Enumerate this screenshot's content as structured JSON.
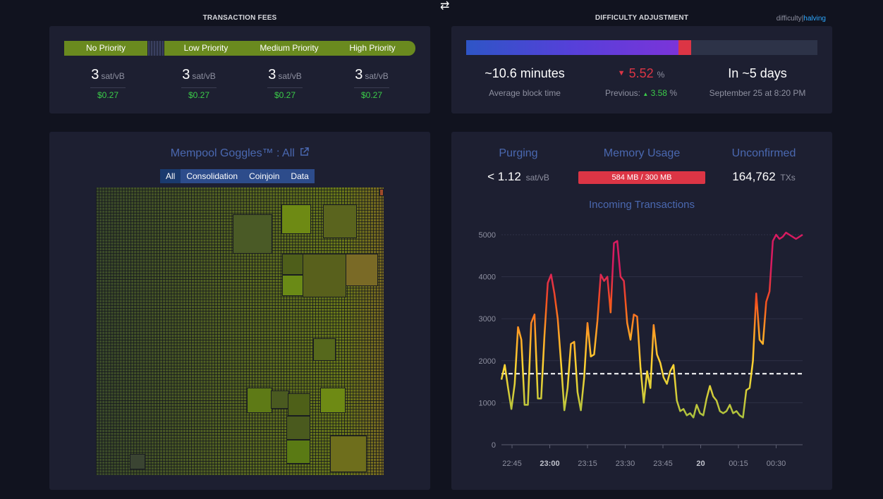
{
  "header": {
    "swap_icon": "⇄"
  },
  "fees": {
    "title": "TRANSACTION FEES",
    "segments": [
      "No Priority",
      "Low Priority",
      "Medium Priority",
      "High Priority"
    ],
    "columns": [
      {
        "sat": "3",
        "unit": "sat/vB",
        "usd": "$0.27"
      },
      {
        "sat": "3",
        "unit": "sat/vB",
        "usd": "$0.27"
      },
      {
        "sat": "3",
        "unit": "sat/vB",
        "usd": "$0.27"
      },
      {
        "sat": "3",
        "unit": "sat/vB",
        "usd": "$0.27"
      }
    ]
  },
  "difficulty": {
    "title": "DIFFICULTY ADJUSTMENT",
    "toggle_difficulty": "difficulty",
    "toggle_sep": "|",
    "toggle_halving": "halving",
    "progress_fraction": 0.64,
    "block_time": "~10.6 minutes",
    "block_time_label": "Average block time",
    "change_arrow": "▼",
    "change_value": "5.52",
    "change_unit": "%",
    "previous_label": "Previous:",
    "previous_arrow": "▲",
    "previous_value": "3.58",
    "previous_unit": "%",
    "eta": "In ~5 days",
    "eta_date": "September 25 at 8:20 PM"
  },
  "goggles": {
    "title": "Mempool Goggles™ : All",
    "link_icon": "external-link-icon",
    "tabs": [
      "All",
      "Consolidation",
      "Coinjoin",
      "Data"
    ]
  },
  "memory": {
    "purging_label": "Purging",
    "purging_value": "< 1.12",
    "purging_unit": "sat/vB",
    "memory_label": "Memory Usage",
    "memory_value": "584 MB / 300 MB",
    "unconfirmed_label": "Unconfirmed",
    "unconfirmed_value": "164,762",
    "unconfirmed_unit": "TXs",
    "chart_title": "Incoming Transactions"
  },
  "chart_data": {
    "type": "line",
    "title": "Incoming Transactions",
    "ylim": [
      0,
      5000
    ],
    "yticks": [
      0,
      1000,
      2000,
      3000,
      4000,
      5000
    ],
    "xticks": [
      "22:45",
      "23:00",
      "23:15",
      "23:30",
      "23:45",
      "20",
      "00:15",
      "00:30"
    ],
    "xticks_bold": [
      "23:00",
      "20"
    ],
    "threshold": 1690,
    "x_minutes": [
      0,
      2,
      4,
      6,
      8,
      10,
      12,
      14,
      16,
      18,
      20,
      22,
      24,
      26,
      28,
      30,
      32,
      34,
      36,
      38,
      40,
      42,
      44,
      46,
      48,
      50,
      52,
      54,
      56,
      58,
      60,
      62,
      64,
      66,
      68,
      70,
      72,
      74,
      76,
      78,
      80,
      82,
      84,
      86,
      88,
      90,
      92,
      94,
      96,
      98,
      100,
      102,
      104,
      106,
      108,
      110,
      112,
      114,
      116,
      118,
      120,
      122,
      124,
      126,
      128,
      130,
      132,
      134,
      136,
      138,
      140,
      142,
      144,
      146,
      148,
      150,
      152,
      154,
      156,
      158,
      160,
      162,
      164,
      166,
      168,
      170,
      172,
      174,
      176,
      178,
      180,
      182
    ],
    "values": [
      1550,
      1900,
      1350,
      850,
      1450,
      2800,
      2500,
      950,
      950,
      2900,
      3100,
      1100,
      1100,
      2600,
      3850,
      4050,
      3600,
      3000,
      1950,
      820,
      1350,
      2400,
      2450,
      1250,
      820,
      1600,
      2900,
      2100,
      2150,
      2950,
      4050,
      3900,
      4000,
      3150,
      4800,
      4850,
      4000,
      3900,
      2900,
      2500,
      3100,
      3050,
      1850,
      1000,
      1750,
      1350,
      2850,
      2150,
      1950,
      1600,
      1450,
      1750,
      1900,
      1050,
      800,
      850,
      700,
      750,
      650,
      950,
      750,
      700,
      1100,
      1400,
      1150,
      1050,
      800,
      750,
      800,
      950,
      750,
      800,
      700,
      650,
      1300,
      1350,
      2000,
      3600,
      2500,
      2400,
      3400,
      3650,
      4850,
      5000,
      4900,
      4950,
      5050,
      5000,
      4950,
      4900,
      4950,
      5000
    ],
    "color_scale": [
      {
        "from": 0,
        "color": "#7cb342"
      },
      {
        "from": 1800,
        "color": "#fdd835"
      },
      {
        "from": 2600,
        "color": "#ffa726"
      },
      {
        "from": 3400,
        "color": "#f4511e"
      },
      {
        "from": 4200,
        "color": "#d81b60"
      }
    ]
  }
}
